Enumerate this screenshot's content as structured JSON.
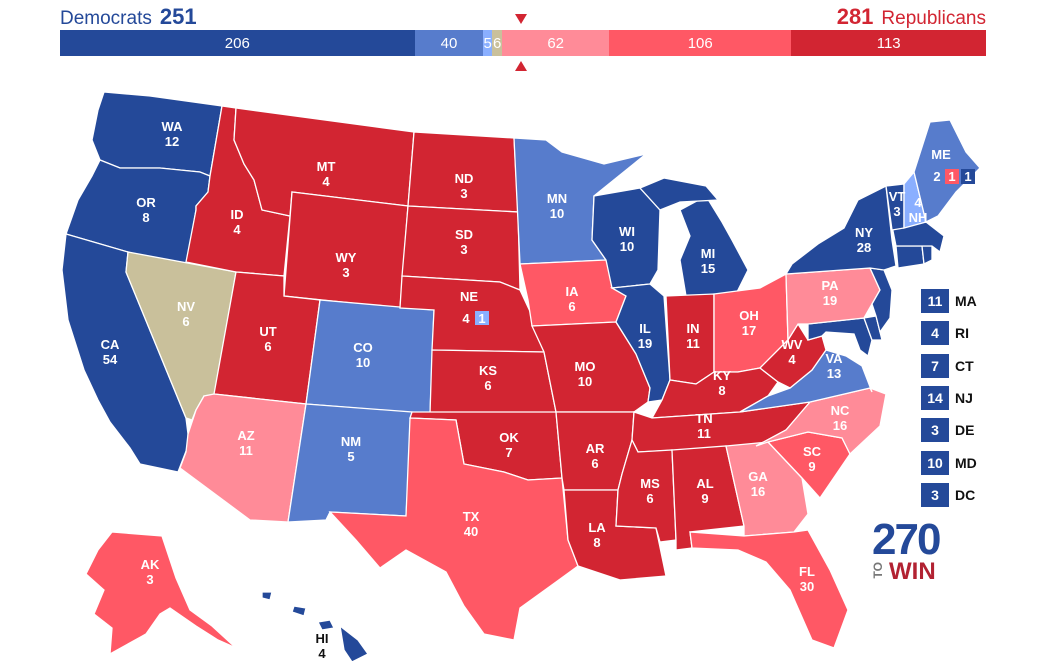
{
  "header": {
    "dem_label": "Democrats",
    "dem_total": "251",
    "rep_total": "281",
    "rep_label": "Republicans"
  },
  "tally": [
    {
      "value": 206,
      "label": "206",
      "color": "#244999"
    },
    {
      "value": 40,
      "label": "40",
      "color": "#577ccc"
    },
    {
      "value": 5,
      "label": "5",
      "color": "#8aafff"
    },
    {
      "value": 6,
      "label": "6",
      "color": "#c9c09b"
    },
    {
      "value": 62,
      "label": "62",
      "color": "#ff8b98"
    },
    {
      "value": 106,
      "label": "106",
      "color": "#ff5865"
    },
    {
      "value": 113,
      "label": "113",
      "color": "#d22532"
    }
  ],
  "states": {
    "WA": {
      "abbr": "WA",
      "ev": "12",
      "color": "#244999"
    },
    "OR": {
      "abbr": "OR",
      "ev": "8",
      "color": "#244999"
    },
    "CA": {
      "abbr": "CA",
      "ev": "54",
      "color": "#244999"
    },
    "NV": {
      "abbr": "NV",
      "ev": "6",
      "color": "#c9c09b"
    },
    "ID": {
      "abbr": "ID",
      "ev": "4",
      "color": "#d22532"
    },
    "MT": {
      "abbr": "MT",
      "ev": "4",
      "color": "#d22532"
    },
    "WY": {
      "abbr": "WY",
      "ev": "3",
      "color": "#d22532"
    },
    "UT": {
      "abbr": "UT",
      "ev": "6",
      "color": "#d22532"
    },
    "AZ": {
      "abbr": "AZ",
      "ev": "11",
      "color": "#ff8b98"
    },
    "CO": {
      "abbr": "CO",
      "ev": "10",
      "color": "#577ccc"
    },
    "NM": {
      "abbr": "NM",
      "ev": "5",
      "color": "#577ccc"
    },
    "ND": {
      "abbr": "ND",
      "ev": "3",
      "color": "#d22532"
    },
    "SD": {
      "abbr": "SD",
      "ev": "3",
      "color": "#d22532"
    },
    "NE": {
      "abbr": "NE",
      "ev": "4",
      "color": "#d22532"
    },
    "KS": {
      "abbr": "KS",
      "ev": "6",
      "color": "#d22532"
    },
    "OK": {
      "abbr": "OK",
      "ev": "7",
      "color": "#d22532"
    },
    "TX": {
      "abbr": "TX",
      "ev": "40",
      "color": "#ff5865"
    },
    "MN": {
      "abbr": "MN",
      "ev": "10",
      "color": "#577ccc"
    },
    "IA": {
      "abbr": "IA",
      "ev": "6",
      "color": "#ff5865"
    },
    "MO": {
      "abbr": "MO",
      "ev": "10",
      "color": "#d22532"
    },
    "AR": {
      "abbr": "AR",
      "ev": "6",
      "color": "#d22532"
    },
    "LA": {
      "abbr": "LA",
      "ev": "8",
      "color": "#d22532"
    },
    "WI": {
      "abbr": "WI",
      "ev": "10",
      "color": "#244999"
    },
    "IL": {
      "abbr": "IL",
      "ev": "19",
      "color": "#244999"
    },
    "MI": {
      "abbr": "MI",
      "ev": "15",
      "color": "#244999"
    },
    "IN": {
      "abbr": "IN",
      "ev": "11",
      "color": "#d22532"
    },
    "OH": {
      "abbr": "OH",
      "ev": "17",
      "color": "#ff5865"
    },
    "KY": {
      "abbr": "KY",
      "ev": "8",
      "color": "#d22532"
    },
    "TN": {
      "abbr": "TN",
      "ev": "11",
      "color": "#d22532"
    },
    "MS": {
      "abbr": "MS",
      "ev": "6",
      "color": "#d22532"
    },
    "AL": {
      "abbr": "AL",
      "ev": "9",
      "color": "#d22532"
    },
    "GA": {
      "abbr": "GA",
      "ev": "16",
      "color": "#ff8b98"
    },
    "FL": {
      "abbr": "FL",
      "ev": "30",
      "color": "#ff5865"
    },
    "SC": {
      "abbr": "SC",
      "ev": "9",
      "color": "#ff5865"
    },
    "NC": {
      "abbr": "NC",
      "ev": "16",
      "color": "#ff8b98"
    },
    "VA": {
      "abbr": "VA",
      "ev": "13",
      "color": "#577ccc"
    },
    "WV": {
      "abbr": "WV",
      "ev": "4",
      "color": "#d22532"
    },
    "PA": {
      "abbr": "PA",
      "ev": "19",
      "color": "#ff8b98"
    },
    "NY": {
      "abbr": "NY",
      "ev": "28",
      "color": "#244999"
    },
    "VT": {
      "abbr": "VT",
      "ev": "3",
      "color": "#244999"
    },
    "NH": {
      "abbr": "NH",
      "ev": "4",
      "color": "#8aafff"
    },
    "ME": {
      "abbr": "ME",
      "ev": "2",
      "color": "#577ccc"
    },
    "AK": {
      "abbr": "AK",
      "ev": "3",
      "color": "#ff5865"
    },
    "HI": {
      "abbr": "HI",
      "ev": "4",
      "color": "#244999"
    },
    "MD": {
      "abbr": "MD",
      "ev": "10",
      "color": "#244999"
    },
    "DE": {
      "abbr": "DE",
      "ev": "3",
      "color": "#244999"
    },
    "NJ": {
      "abbr": "NJ",
      "ev": "14",
      "color": "#244999"
    },
    "CT": {
      "abbr": "CT",
      "ev": "7",
      "color": "#244999"
    },
    "RI": {
      "abbr": "RI",
      "ev": "4",
      "color": "#244999"
    },
    "MA": {
      "abbr": "MA",
      "ev": "11",
      "color": "#244999"
    }
  },
  "districts": {
    "ne_2": {
      "ev": "1",
      "color": "#8aafff"
    },
    "me_2": {
      "ev": "1",
      "color": "#ff5865"
    },
    "me_1": {
      "ev": "1",
      "color": "#244999"
    }
  },
  "small_states": [
    {
      "abbr": "MA",
      "ev": "11",
      "color": "#244999"
    },
    {
      "abbr": "RI",
      "ev": "4",
      "color": "#244999"
    },
    {
      "abbr": "CT",
      "ev": "7",
      "color": "#244999"
    },
    {
      "abbr": "NJ",
      "ev": "14",
      "color": "#244999"
    },
    {
      "abbr": "DE",
      "ev": "3",
      "color": "#244999"
    },
    {
      "abbr": "MD",
      "ev": "10",
      "color": "#244999"
    },
    {
      "abbr": "DC",
      "ev": "3",
      "color": "#244999"
    }
  ],
  "logo": {
    "number": "270",
    "to": "TO",
    "win": "WIN"
  }
}
